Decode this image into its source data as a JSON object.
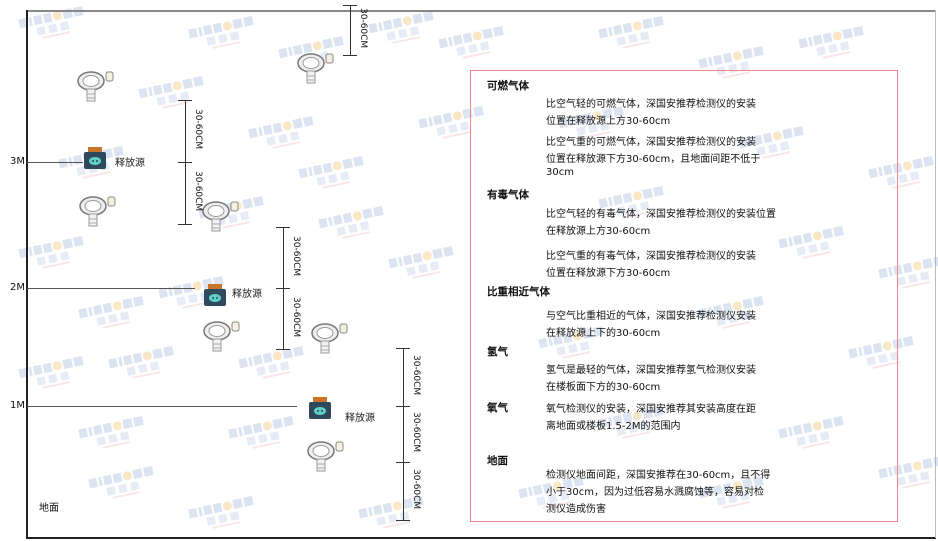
{
  "watermark": {
    "brand": "SINGOAN",
    "cn": "深国安"
  },
  "levels": {
    "m3": "3M",
    "m2": "2M",
    "m1": "1M",
    "ground": "地面"
  },
  "dimension_label": "30-60CM",
  "source_label": "释放源",
  "panel": {
    "flammable": {
      "title": "可燃气体",
      "lines": [
        "比空气轻的可燃气体，深国安推荐检测仪的安装",
        "位置在释放源上方30-60cm",
        "比空气重的可燃气体，深国安推荐检测仪的安装",
        "位置在释放源下方30-60cm，且地面间距不低于",
        "30cm"
      ]
    },
    "toxic": {
      "title": "有毒气体",
      "lines": [
        "比空气轻的有毒气体，深国安推荐检测仪的安装位置",
        "在释放源上方30-60cm",
        "比空气重的有毒气体，深国安推荐检测仪的安装",
        "位置在释放源下方30-60cm"
      ]
    },
    "similar": {
      "title": "比重相近气体",
      "lines": [
        "与空气比重相近的气体，深国安推荐检测仪安装",
        "在释放源上下的30-60cm"
      ]
    },
    "hydrogen": {
      "title": "氢气",
      "lines": [
        "氢气是最轻的气体，深国安推荐氢气检测仪安装",
        "在楼板面下方的30-60cm"
      ]
    },
    "oxygen": {
      "title": "氧气",
      "lines": [
        "氧气检测仪的安装，深国安推荐其安装高度在距",
        "离地面或楼板1.5-2M的范围内"
      ]
    },
    "ground": {
      "title": "地面",
      "lines": [
        "检测仪地面间距，深国安推荐在30-60cm，且不得",
        "小于30cm，因为过低容易水溅腐蚀等，容易对检",
        "测仪造成伤害"
      ]
    }
  },
  "colors": {
    "panel_border": "#e88a8a",
    "source_body": "#2f4a5c",
    "source_cap": "#c8742a",
    "source_icon": "#5fd0c8"
  }
}
